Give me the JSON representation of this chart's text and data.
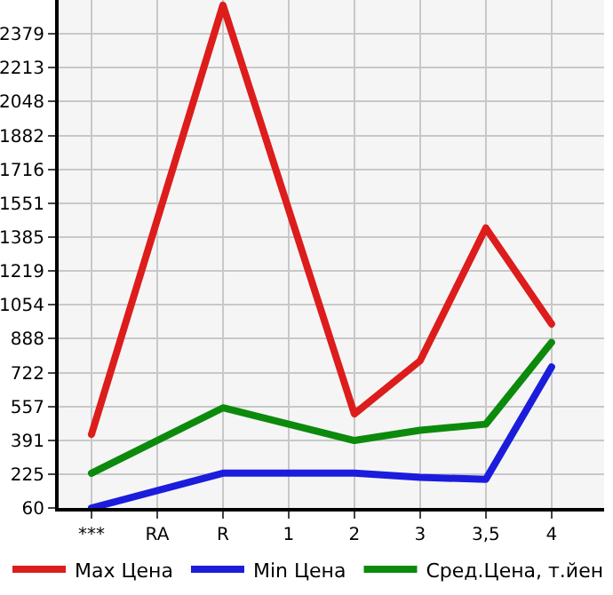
{
  "chart_data": {
    "type": "line",
    "categories": [
      "***",
      "RA",
      "R",
      "1",
      "2",
      "3",
      "3,5",
      "4"
    ],
    "series": [
      {
        "name": "Max Цена",
        "color": "#dd1c1c",
        "values": [
          420,
          null,
          2520,
          null,
          520,
          780,
          1430,
          960
        ]
      },
      {
        "name": "Min Цена",
        "color": "#1c1cdd",
        "values": [
          60,
          null,
          230,
          null,
          230,
          210,
          200,
          750
        ]
      },
      {
        "name": "Сред.Цена, т.йен",
        "color": "#0c8a0c",
        "values": [
          230,
          null,
          550,
          null,
          390,
          440,
          470,
          870
        ]
      }
    ],
    "ylim": [
      60,
      2545
    ],
    "yticks": [
      60,
      225,
      391,
      557,
      722,
      888,
      1054,
      1219,
      1385,
      1551,
      1716,
      1882,
      2048,
      2213,
      2379
    ],
    "grid": true,
    "legend": "bottom",
    "marker": "none",
    "line_style": "solid"
  }
}
